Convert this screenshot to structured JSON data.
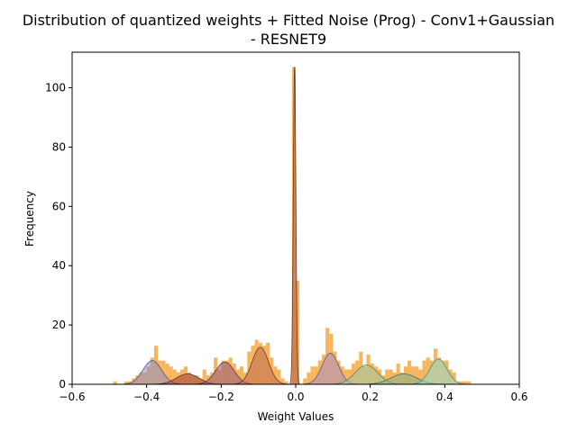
{
  "chart_data": {
    "type": "histogram",
    "title_lines": [
      "Distribution of quantized weights + Fitted Noise (Prog) - Conv1+Gaussian",
      "- RESNET9"
    ],
    "xlabel": "Weight Values",
    "ylabel": "Frequency",
    "xlim": [
      -0.6,
      0.6
    ],
    "ylim": [
      0,
      112
    ],
    "xticks": [
      -0.6,
      -0.4,
      -0.2,
      0.0,
      0.2,
      0.4,
      0.6
    ],
    "xtick_labels": [
      "−0.6",
      "−0.4",
      "−0.2",
      "0.0",
      "0.2",
      "0.4",
      "0.6"
    ],
    "yticks": [
      0,
      20,
      40,
      60,
      80,
      100
    ],
    "ytick_labels": [
      "0",
      "20",
      "40",
      "60",
      "80",
      "100"
    ],
    "histogram": {
      "color": "#f5a030",
      "bin_width": 0.01,
      "bins": [
        [
          -0.49,
          1
        ],
        [
          -0.46,
          1
        ],
        [
          -0.45,
          1
        ],
        [
          -0.44,
          2
        ],
        [
          -0.43,
          3
        ],
        [
          -0.42,
          4
        ],
        [
          -0.41,
          4
        ],
        [
          -0.4,
          6
        ],
        [
          -0.39,
          9
        ],
        [
          -0.38,
          13
        ],
        [
          -0.37,
          8
        ],
        [
          -0.36,
          8
        ],
        [
          -0.35,
          7
        ],
        [
          -0.34,
          6
        ],
        [
          -0.33,
          5
        ],
        [
          -0.32,
          4
        ],
        [
          -0.31,
          5
        ],
        [
          -0.3,
          6
        ],
        [
          -0.29,
          4
        ],
        [
          -0.28,
          3
        ],
        [
          -0.27,
          3
        ],
        [
          -0.26,
          2
        ],
        [
          -0.25,
          5
        ],
        [
          -0.24,
          3
        ],
        [
          -0.23,
          4
        ],
        [
          -0.22,
          9
        ],
        [
          -0.21,
          5
        ],
        [
          -0.2,
          8
        ],
        [
          -0.19,
          8
        ],
        [
          -0.18,
          9
        ],
        [
          -0.17,
          7
        ],
        [
          -0.16,
          5
        ],
        [
          -0.15,
          6
        ],
        [
          -0.14,
          4
        ],
        [
          -0.13,
          11
        ],
        [
          -0.12,
          13
        ],
        [
          -0.11,
          15
        ],
        [
          -0.1,
          14
        ],
        [
          -0.09,
          13
        ],
        [
          -0.08,
          14
        ],
        [
          -0.07,
          9
        ],
        [
          -0.06,
          6
        ],
        [
          -0.05,
          5
        ],
        [
          -0.04,
          2
        ],
        [
          -0.03,
          1
        ],
        [
          -0.01,
          107
        ],
        [
          0.0,
          35
        ],
        [
          0.02,
          2
        ],
        [
          0.03,
          4
        ],
        [
          0.04,
          6
        ],
        [
          0.05,
          6
        ],
        [
          0.06,
          8
        ],
        [
          0.07,
          10
        ],
        [
          0.08,
          19
        ],
        [
          0.09,
          17
        ],
        [
          0.1,
          11
        ],
        [
          0.11,
          8
        ],
        [
          0.12,
          6
        ],
        [
          0.13,
          5
        ],
        [
          0.14,
          5
        ],
        [
          0.15,
          7
        ],
        [
          0.16,
          8
        ],
        [
          0.17,
          11
        ],
        [
          0.18,
          6
        ],
        [
          0.19,
          10
        ],
        [
          0.2,
          7
        ],
        [
          0.21,
          6
        ],
        [
          0.22,
          5
        ],
        [
          0.23,
          3
        ],
        [
          0.24,
          5
        ],
        [
          0.25,
          5
        ],
        [
          0.26,
          4
        ],
        [
          0.27,
          7
        ],
        [
          0.28,
          4
        ],
        [
          0.29,
          6
        ],
        [
          0.3,
          8
        ],
        [
          0.31,
          6
        ],
        [
          0.32,
          6
        ],
        [
          0.33,
          5
        ],
        [
          0.34,
          8
        ],
        [
          0.35,
          9
        ],
        [
          0.36,
          8
        ],
        [
          0.37,
          12
        ],
        [
          0.38,
          9
        ],
        [
          0.39,
          8
        ],
        [
          0.4,
          8
        ],
        [
          0.41,
          5
        ],
        [
          0.42,
          4
        ],
        [
          0.43,
          1
        ],
        [
          0.44,
          1
        ],
        [
          0.45,
          1
        ],
        [
          0.46,
          1
        ]
      ]
    },
    "fitted_gaussians": [
      {
        "mean": -0.385,
        "std": 0.025,
        "amp": 8.0,
        "fill": "#8b8ec6",
        "edge": "#4a4a7a"
      },
      {
        "mean": -0.29,
        "std": 0.03,
        "amp": 3.5,
        "fill": "#9a3d3d",
        "edge": "#5a1e1e"
      },
      {
        "mean": -0.19,
        "std": 0.025,
        "amp": 7.5,
        "fill": "#8e5a80",
        "edge": "#4f2c44"
      },
      {
        "mean": -0.095,
        "std": 0.022,
        "amp": 12.5,
        "fill": "#c06a4e",
        "edge": "#5a2e1e"
      },
      {
        "mean": -0.003,
        "std": 0.0035,
        "amp": 107,
        "fill": "#b0563f",
        "edge": "#5a2e1e"
      },
      {
        "mean": 0.093,
        "std": 0.022,
        "amp": 10.5,
        "fill": "#a590c8",
        "edge": "#5a4a7a"
      },
      {
        "mean": 0.19,
        "std": 0.03,
        "amp": 6.5,
        "fill": "#9ccaa8",
        "edge": "#4f7a58"
      },
      {
        "mean": 0.29,
        "std": 0.035,
        "amp": 3.5,
        "fill": "#7fb08f",
        "edge": "#3f6a4f"
      },
      {
        "mean": 0.383,
        "std": 0.023,
        "amp": 8.5,
        "fill": "#8fd8d0",
        "edge": "#3f8a84"
      }
    ]
  }
}
